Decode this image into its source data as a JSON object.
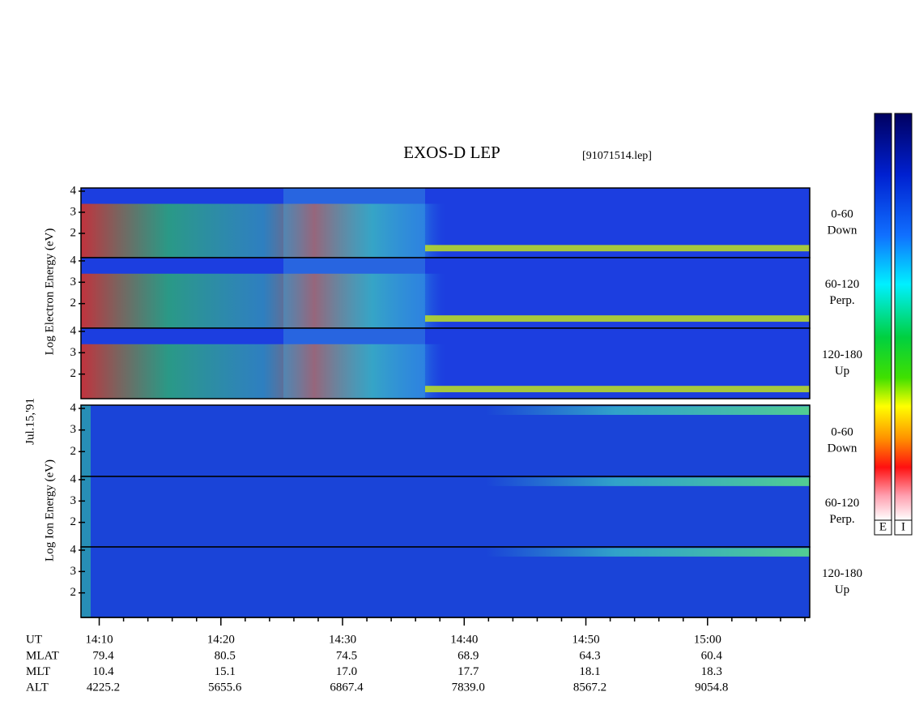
{
  "chart_data": {
    "type": "spectrogram",
    "title": "EXOS-D LEP",
    "file_label": "[91071514.lep]",
    "electron_axis_label": "Log  Electron  Energy  (eV)",
    "ion_axis_label": "Log  Ion  Energy  (eV)",
    "date_label": "Jul.15,'91",
    "electron_panels": [
      {
        "angle": "0-60",
        "direction": "Down"
      },
      {
        "angle": "60-120",
        "direction": "Perp."
      },
      {
        "angle": "120-180",
        "direction": "Up"
      }
    ],
    "ion_panels": [
      {
        "angle": "0-60",
        "direction": "Down"
      },
      {
        "angle": "60-120",
        "direction": "Perp."
      },
      {
        "angle": "120-180",
        "direction": "Up"
      }
    ],
    "ylim": [
      0.85,
      4.15
    ],
    "yticks": [
      2,
      3,
      4
    ],
    "xlim": [
      848.5,
      908.4
    ],
    "xticks": [
      {
        "value": 850,
        "label": "14:10"
      },
      {
        "value": 860,
        "label": "14:20"
      },
      {
        "value": 870,
        "label": "14:30"
      },
      {
        "value": 880,
        "label": "14:40"
      },
      {
        "value": 890,
        "label": "14:50"
      },
      {
        "value": 900,
        "label": "15:00"
      }
    ],
    "xminorticks": [
      852,
      854,
      856,
      858,
      862,
      864,
      866,
      868,
      872,
      874,
      876,
      878,
      882,
      884,
      886,
      888,
      892,
      894,
      896,
      898,
      902,
      904,
      906,
      908
    ],
    "ephemeris_time_label": "UT",
    "ephemeris": [
      {
        "name": "MLAT",
        "values": [
          "79.4",
          "80.5",
          "74.5",
          "68.9",
          "64.3",
          "60.4"
        ]
      },
      {
        "name": "MLT",
        "values": [
          "10.4",
          "15.1",
          "17.0",
          "17.7",
          "18.1",
          "18.3"
        ]
      },
      {
        "name": "ALT",
        "values": [
          "4225.2",
          "5655.6",
          "6867.4",
          "7839.0",
          "8567.2",
          "9054.8"
        ]
      }
    ],
    "colorbar_labels": [
      "E",
      "I"
    ]
  }
}
